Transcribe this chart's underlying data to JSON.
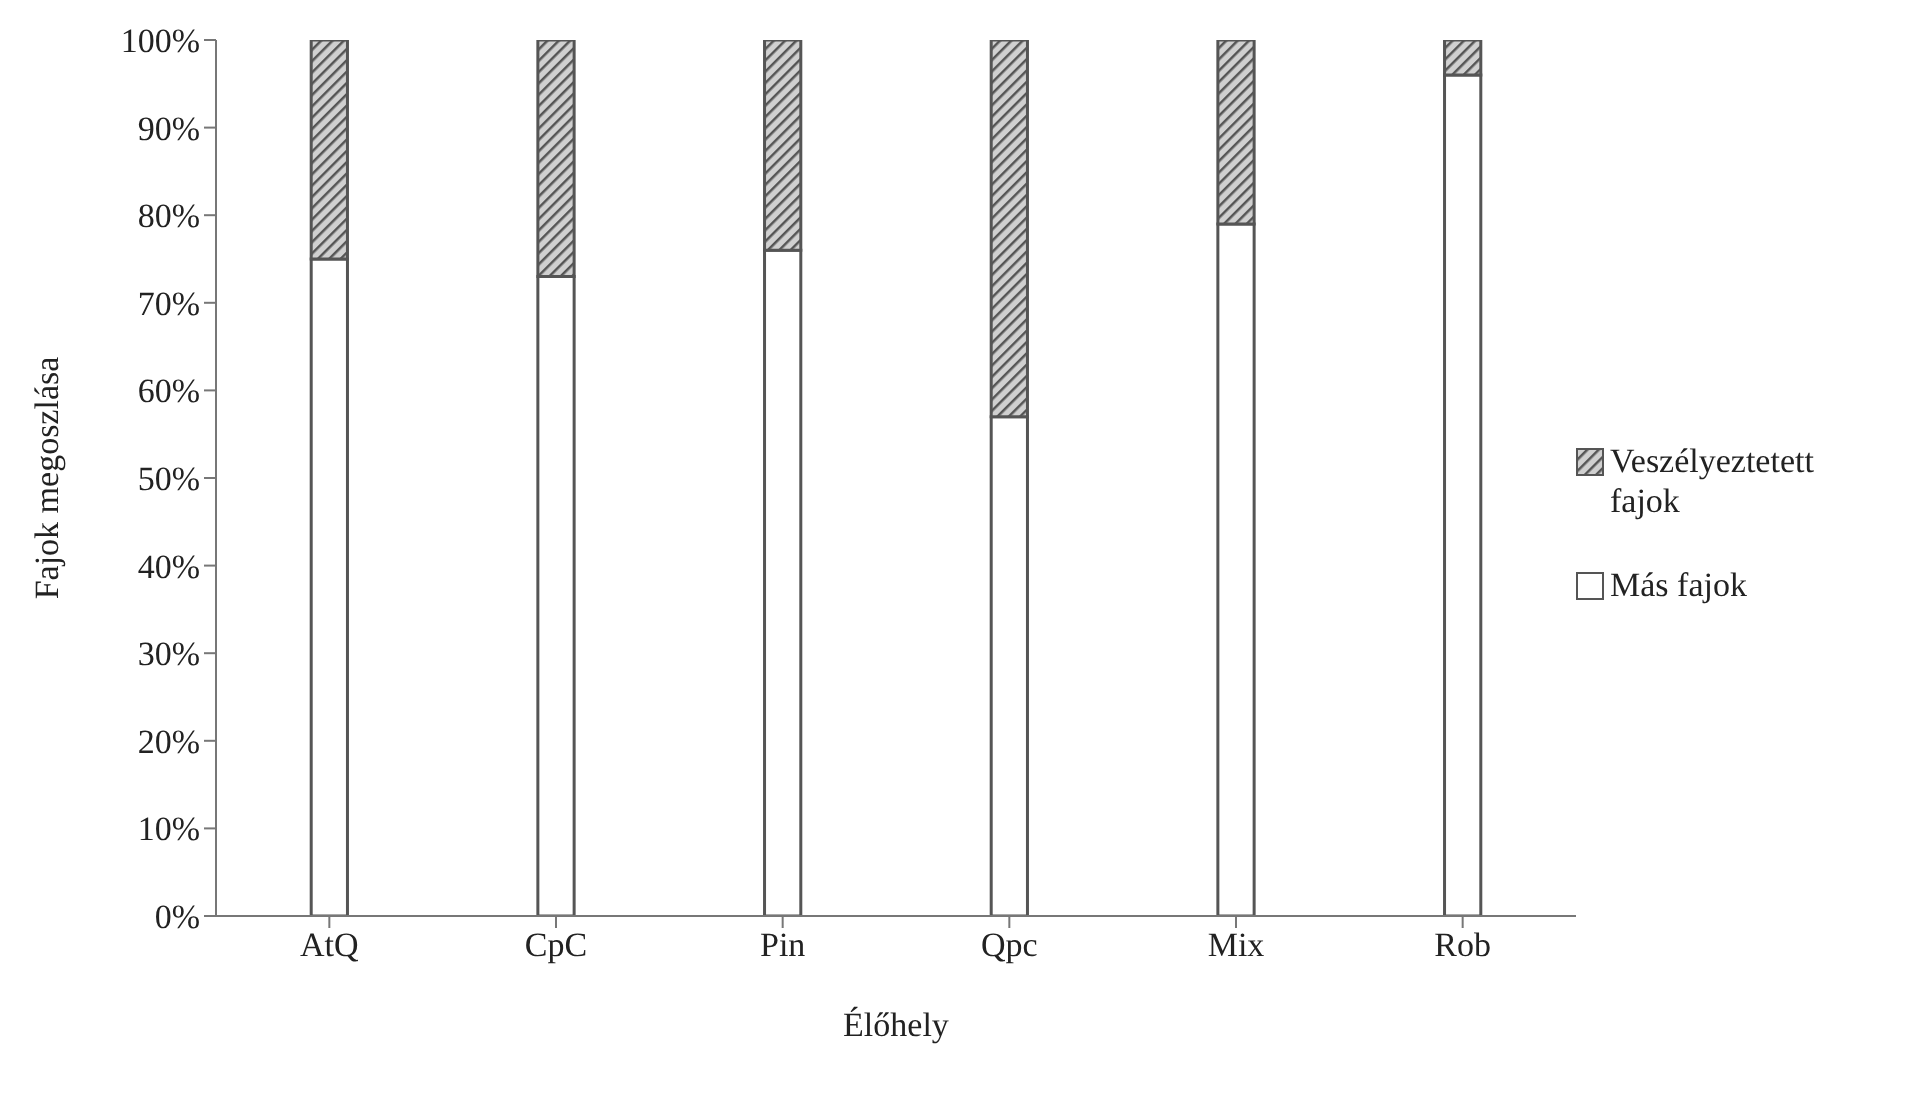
{
  "chart_data": {
    "type": "bar",
    "stacked": true,
    "xlabel": "Élőhely",
    "ylabel": "Fajok megoszlása",
    "categories": [
      "AtQ",
      "CpC",
      "Pin",
      "Qpc",
      "Mix",
      "Rob"
    ],
    "series": [
      {
        "name": "Más fajok",
        "color": "#ffffff",
        "values": [
          75,
          73,
          76,
          57,
          79,
          96
        ]
      },
      {
        "name": "Veszélyeztetett fajok",
        "color": "#555555",
        "values": [
          25,
          27,
          24,
          43,
          21,
          4
        ]
      }
    ],
    "ylim": [
      0,
      100
    ],
    "yticks": [
      {
        "value": 0,
        "label": "0%"
      },
      {
        "value": 10,
        "label": "10%"
      },
      {
        "value": 20,
        "label": "20%"
      },
      {
        "value": 30,
        "label": "30%"
      },
      {
        "value": 40,
        "label": "40%"
      },
      {
        "value": 50,
        "label": "50%"
      },
      {
        "value": 60,
        "label": "60%"
      },
      {
        "value": 70,
        "label": "70%"
      },
      {
        "value": 80,
        "label": "80%"
      },
      {
        "value": 90,
        "label": "90%"
      },
      {
        "value": 100,
        "label": "100%"
      }
    ],
    "legend": "right"
  }
}
